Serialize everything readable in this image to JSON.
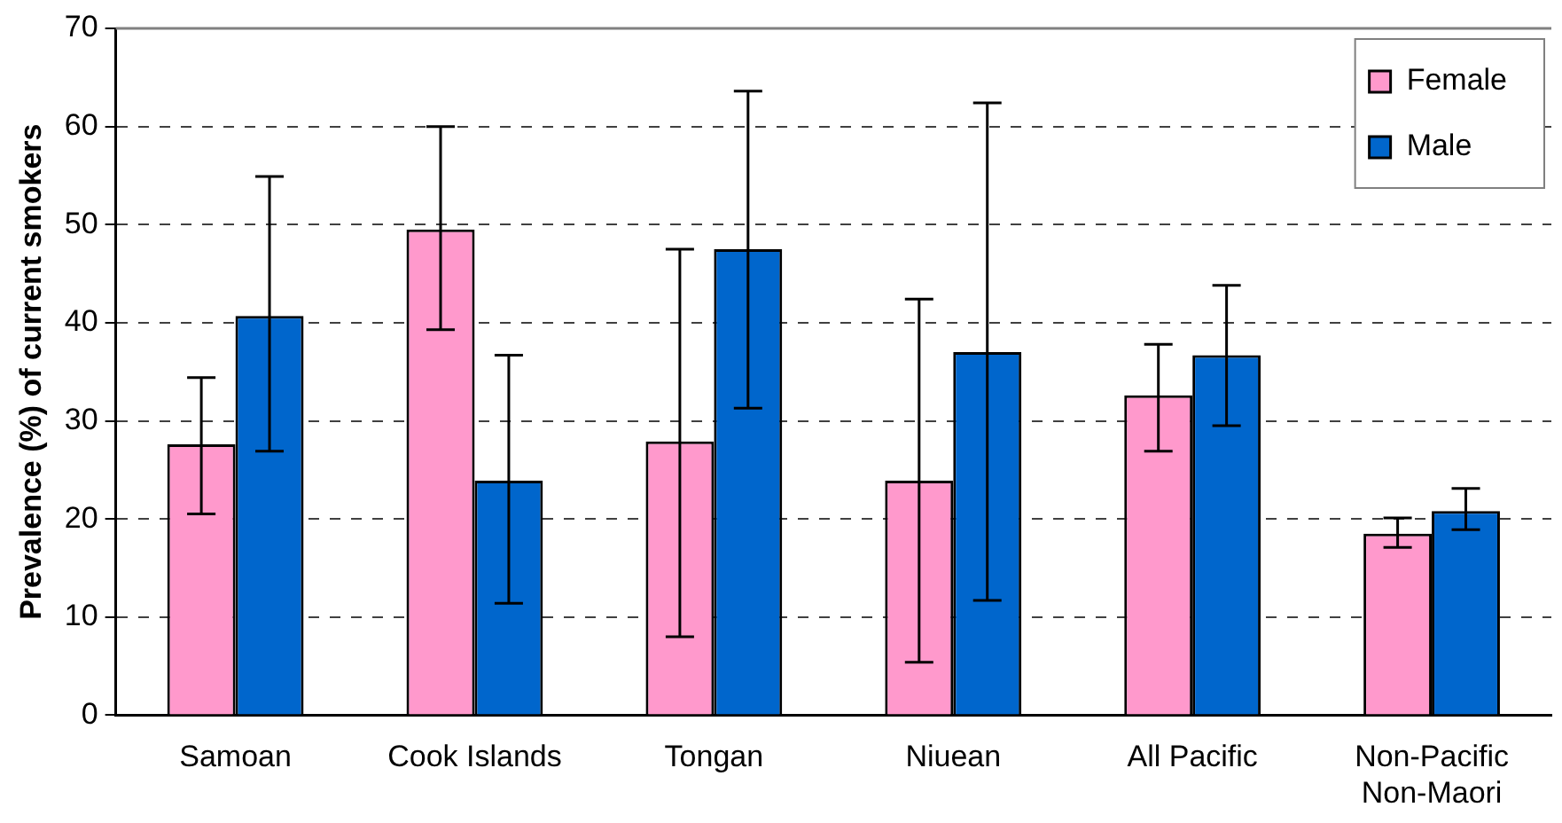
{
  "chart_data": {
    "type": "bar",
    "ylabel": "Prevalence (%) of current smokers",
    "categories": [
      "Samoan",
      "Cook Islands",
      "Tongan",
      "Niuean",
      "All Pacific",
      "Non-Pacific Non-Maori"
    ],
    "series": [
      {
        "name": "Female",
        "color": "#ff99cc",
        "values": [
          27.6,
          49.5,
          27.9,
          23.9,
          32.6,
          18.5
        ],
        "errors": [
          [
            20.5,
            34.4
          ],
          [
            39.3,
            60.0
          ],
          [
            8.0,
            47.5
          ],
          [
            5.4,
            42.4
          ],
          [
            26.9,
            37.8
          ],
          [
            17.1,
            20.1
          ]
        ]
      },
      {
        "name": "Male",
        "color": "#0066cc",
        "values": [
          40.7,
          23.9,
          47.5,
          37.0,
          36.7,
          20.8
        ],
        "errors": [
          [
            26.9,
            54.9
          ],
          [
            11.4,
            36.7
          ],
          [
            31.3,
            63.6
          ],
          [
            11.7,
            62.4
          ],
          [
            29.5,
            43.8
          ],
          [
            18.9,
            23.1
          ]
        ]
      }
    ],
    "ylim": [
      0,
      70
    ],
    "yticks": [
      0,
      10,
      20,
      30,
      40,
      50,
      60,
      70
    ],
    "grid": "y",
    "legend": "top right"
  }
}
